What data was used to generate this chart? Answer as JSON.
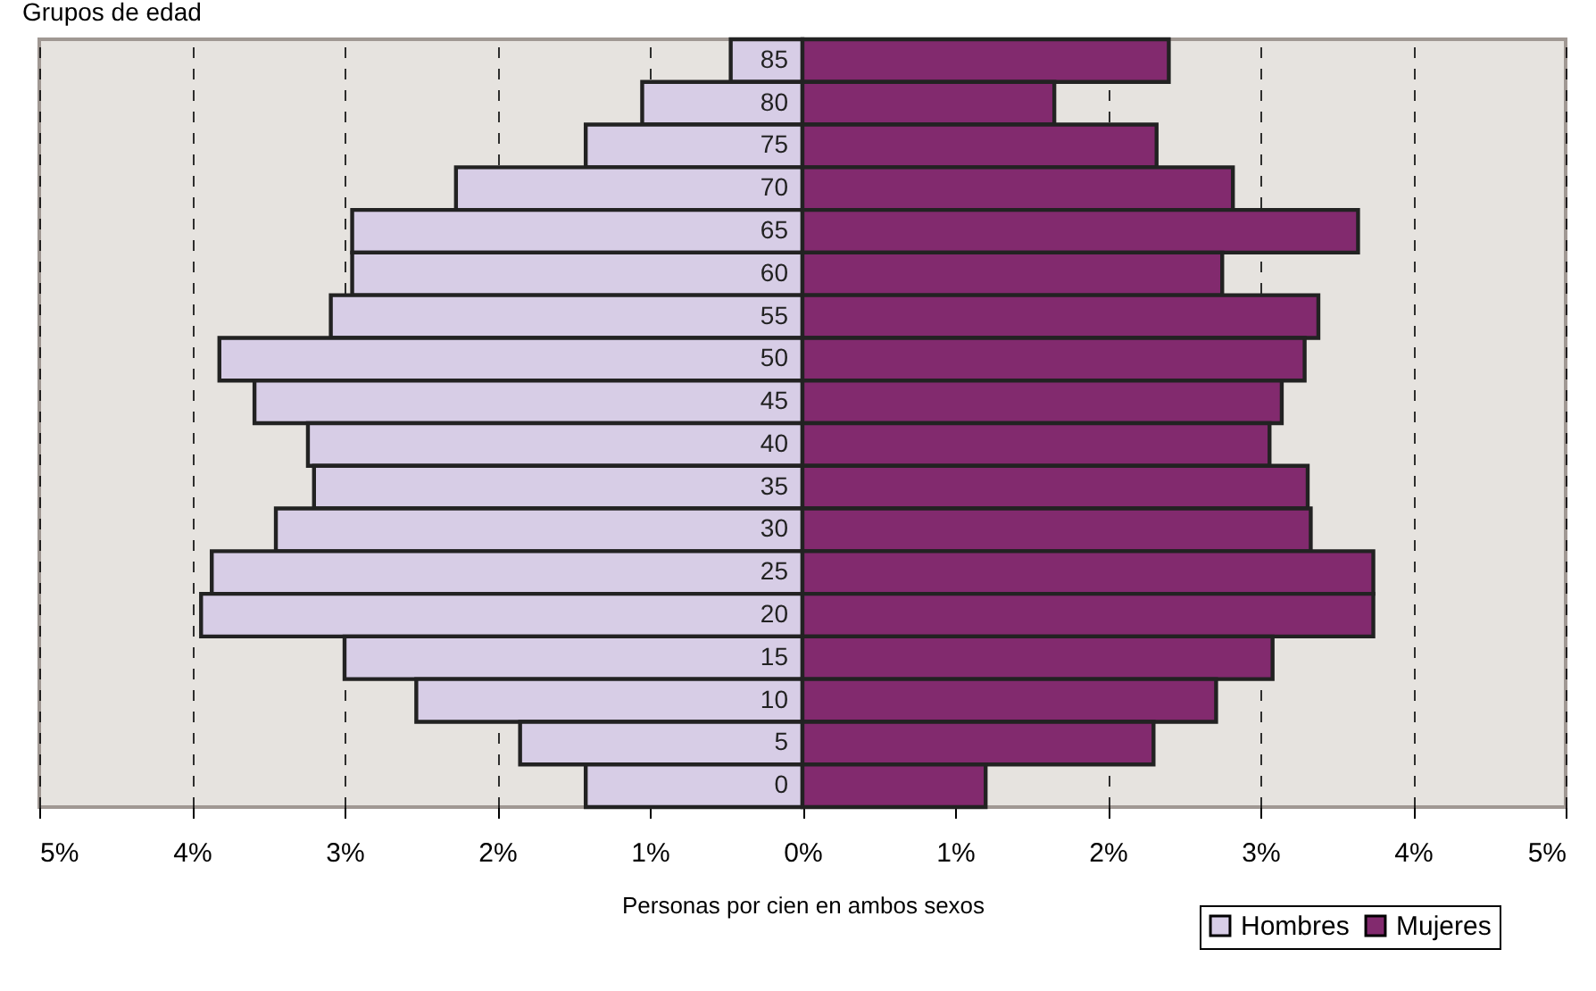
{
  "chart_data": {
    "type": "bar",
    "orientation": "horizontal",
    "ylabel": "Grupos de edad",
    "xlabel": "Personas por cien en ambos sexos",
    "categories": [
      "85",
      "80",
      "75",
      "70",
      "65",
      "60",
      "55",
      "50",
      "45",
      "40",
      "35",
      "30",
      "25",
      "20",
      "15",
      "10",
      "5",
      "0"
    ],
    "series": [
      {
        "name": "Hombres",
        "color": "#d7cde6",
        "values": [
          -0.47,
          -1.05,
          -1.42,
          -2.27,
          -2.95,
          -2.95,
          -3.09,
          -3.82,
          -3.59,
          -3.24,
          -3.2,
          -3.45,
          -3.87,
          -3.94,
          -3.0,
          -2.53,
          -1.85,
          -1.42
        ]
      },
      {
        "name": "Mujeres",
        "color": "#822a6e",
        "values": [
          2.4,
          1.65,
          2.32,
          2.82,
          3.64,
          2.75,
          3.38,
          3.29,
          3.14,
          3.06,
          3.31,
          3.33,
          3.74,
          3.74,
          3.08,
          2.71,
          2.3,
          1.2
        ]
      }
    ],
    "xlim": [
      -5,
      5
    ],
    "xticks": [
      {
        "value": -5,
        "label": "5%"
      },
      {
        "value": -4,
        "label": "4%"
      },
      {
        "value": -3,
        "label": "3%"
      },
      {
        "value": -2,
        "label": "2%"
      },
      {
        "value": -1,
        "label": "1%"
      },
      {
        "value": 0,
        "label": "0%"
      },
      {
        "value": 1,
        "label": "1%"
      },
      {
        "value": 2,
        "label": "2%"
      },
      {
        "value": 3,
        "label": "3%"
      },
      {
        "value": 4,
        "label": "4%"
      },
      {
        "value": 5,
        "label": "5%"
      }
    ],
    "stacked": true,
    "grid": "x",
    "legend": "bottom right"
  }
}
